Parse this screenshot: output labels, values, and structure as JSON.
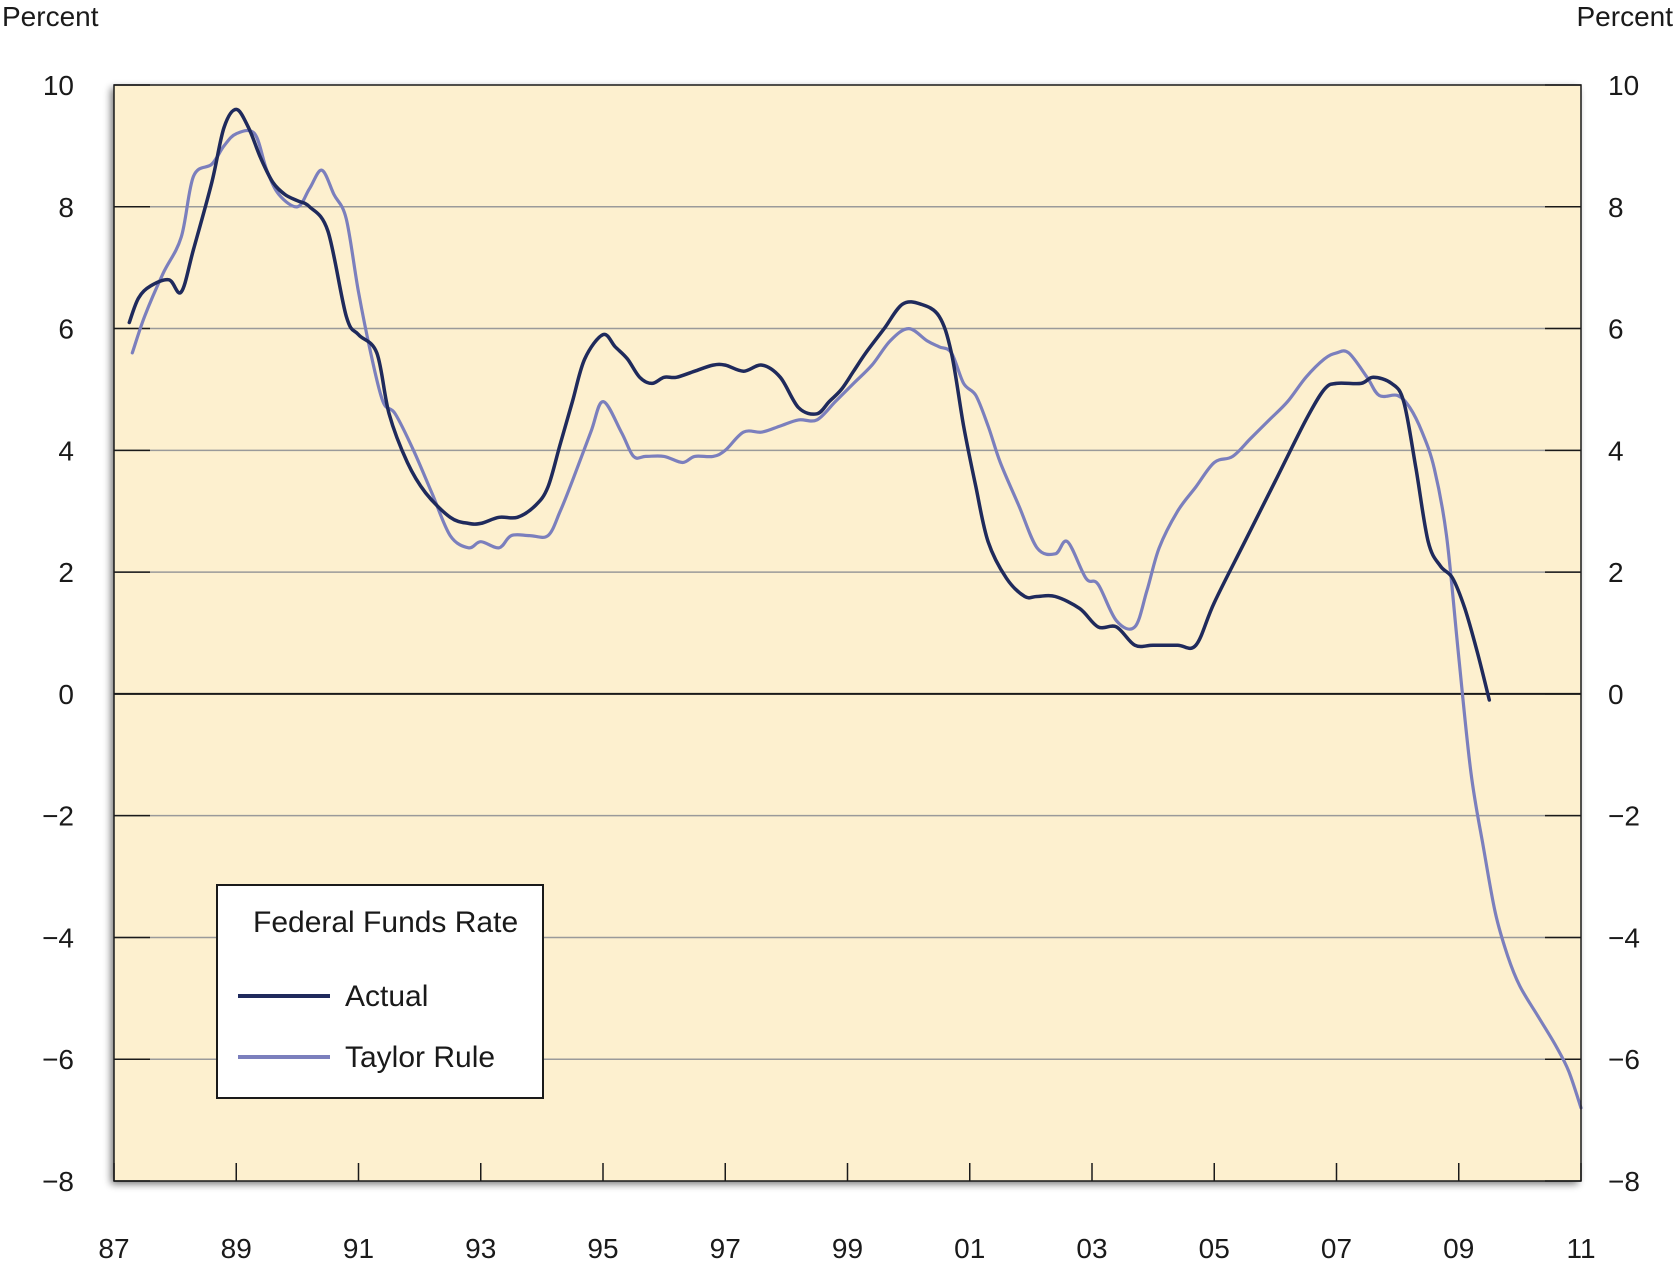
{
  "chart_data": {
    "type": "line",
    "title": "",
    "left_unit_label": "Percent",
    "right_unit_label": "Percent",
    "xlabel": "",
    "ylabel": "Percent",
    "xlim": [
      1987,
      2011
    ],
    "ylim": [
      -8,
      10
    ],
    "y_ticks": [
      10,
      8,
      6,
      4,
      2,
      0,
      -2,
      -4,
      -6,
      -8
    ],
    "y_tick_labels": [
      "10",
      "8",
      "6",
      "4",
      "2",
      "0",
      "−2",
      "−4",
      "−6",
      "−8"
    ],
    "x_ticks": [
      1987,
      1989,
      1991,
      1993,
      1995,
      1997,
      1999,
      2001,
      2003,
      2005,
      2007,
      2009,
      2011
    ],
    "x_tick_labels": [
      "87",
      "89",
      "91",
      "93",
      "95",
      "97",
      "99",
      "01",
      "03",
      "05",
      "07",
      "09",
      "11"
    ],
    "grid": true,
    "background_color": "#fdf0cf",
    "legend": {
      "title": "Federal Funds Rate",
      "placement": "bottom-left"
    },
    "series": [
      {
        "name": "Actual",
        "color": "#1f2a5c",
        "x": [
          1987.25,
          1987.4,
          1987.6,
          1987.9,
          1988.1,
          1988.3,
          1988.6,
          1988.8,
          1989.0,
          1989.2,
          1989.4,
          1989.6,
          1989.8,
          1990.0,
          1990.2,
          1990.5,
          1990.8,
          1991.0,
          1991.3,
          1991.5,
          1991.8,
          1992.1,
          1992.5,
          1992.8,
          1993.0,
          1993.3,
          1993.6,
          1993.9,
          1994.1,
          1994.3,
          1994.5,
          1994.7,
          1995.0,
          1995.2,
          1995.4,
          1995.6,
          1995.8,
          1996.0,
          1996.2,
          1996.5,
          1996.8,
          1997.0,
          1997.3,
          1997.6,
          1997.9,
          1998.2,
          1998.5,
          1998.7,
          1998.9,
          1999.1,
          1999.3,
          1999.6,
          1999.9,
          2000.2,
          2000.5,
          2000.7,
          2000.9,
          2001.1,
          2001.3,
          2001.6,
          2001.9,
          2002.1,
          2002.4,
          2002.8,
          2003.1,
          2003.4,
          2003.7,
          2004.0,
          2004.4,
          2004.7,
          2005.0,
          2005.5,
          2006.0,
          2006.5,
          2006.8,
          2007.0,
          2007.4,
          2007.6,
          2007.9,
          2008.1,
          2008.3,
          2008.5,
          2008.7,
          2008.9,
          2009.1,
          2009.3,
          2009.5
        ],
        "values": [
          6.1,
          6.5,
          6.7,
          6.8,
          6.6,
          7.3,
          8.4,
          9.3,
          9.6,
          9.3,
          8.8,
          8.4,
          8.2,
          8.1,
          8.0,
          7.6,
          6.2,
          5.9,
          5.6,
          4.6,
          3.8,
          3.3,
          2.9,
          2.8,
          2.8,
          2.9,
          2.9,
          3.1,
          3.4,
          4.1,
          4.8,
          5.5,
          5.9,
          5.7,
          5.5,
          5.2,
          5.1,
          5.2,
          5.2,
          5.3,
          5.4,
          5.4,
          5.3,
          5.4,
          5.2,
          4.7,
          4.6,
          4.8,
          5.0,
          5.3,
          5.6,
          6.0,
          6.4,
          6.4,
          6.2,
          5.6,
          4.4,
          3.4,
          2.5,
          1.9,
          1.6,
          1.6,
          1.6,
          1.4,
          1.1,
          1.1,
          0.8,
          0.8,
          0.8,
          0.8,
          1.5,
          2.5,
          3.5,
          4.5,
          5.0,
          5.1,
          5.1,
          5.2,
          5.1,
          4.8,
          3.7,
          2.5,
          2.1,
          1.9,
          1.4,
          0.7,
          -0.1
        ]
      },
      {
        "name": "Taylor Rule",
        "color": "#7b7fbd",
        "x": [
          1987.3,
          1987.5,
          1987.8,
          1988.1,
          1988.3,
          1988.6,
          1988.8,
          1989.0,
          1989.3,
          1989.5,
          1989.7,
          1990.0,
          1990.2,
          1990.4,
          1990.6,
          1990.8,
          1991.0,
          1991.2,
          1991.4,
          1991.6,
          1991.9,
          1992.2,
          1992.5,
          1992.8,
          1993.0,
          1993.3,
          1993.5,
          1993.8,
          1994.1,
          1994.3,
          1994.5,
          1994.8,
          1995.0,
          1995.3,
          1995.5,
          1995.7,
          1996.0,
          1996.3,
          1996.5,
          1996.8,
          1997.0,
          1997.3,
          1997.6,
          1997.9,
          1998.2,
          1998.5,
          1998.8,
          1999.1,
          1999.4,
          1999.7,
          2000.0,
          2000.3,
          2000.5,
          2000.7,
          2000.9,
          2001.1,
          2001.3,
          2001.5,
          2001.8,
          2002.1,
          2002.4,
          2002.6,
          2002.9,
          2003.1,
          2003.4,
          2003.7,
          2003.9,
          2004.1,
          2004.4,
          2004.7,
          2005.0,
          2005.3,
          2005.6,
          2005.9,
          2006.2,
          2006.5,
          2006.8,
          2007.0,
          2007.2,
          2007.5,
          2007.7,
          2008.0,
          2008.2,
          2008.4,
          2008.6,
          2008.8,
          2009.0,
          2009.2,
          2009.4,
          2009.6,
          2009.8,
          2010.0,
          2010.3,
          2010.6,
          2010.8,
          2011.0
        ],
        "values": [
          5.6,
          6.2,
          6.9,
          7.5,
          8.5,
          8.7,
          9.0,
          9.2,
          9.2,
          8.6,
          8.2,
          8.0,
          8.3,
          8.6,
          8.2,
          7.8,
          6.6,
          5.6,
          4.8,
          4.6,
          4.0,
          3.3,
          2.6,
          2.4,
          2.5,
          2.4,
          2.6,
          2.6,
          2.6,
          3.0,
          3.5,
          4.3,
          4.8,
          4.3,
          3.9,
          3.9,
          3.9,
          3.8,
          3.9,
          3.9,
          4.0,
          4.3,
          4.3,
          4.4,
          4.5,
          4.5,
          4.8,
          5.1,
          5.4,
          5.8,
          6.0,
          5.8,
          5.7,
          5.6,
          5.1,
          4.9,
          4.4,
          3.8,
          3.1,
          2.4,
          2.3,
          2.5,
          1.9,
          1.8,
          1.2,
          1.1,
          1.7,
          2.4,
          3.0,
          3.4,
          3.8,
          3.9,
          4.2,
          4.5,
          4.8,
          5.2,
          5.5,
          5.6,
          5.6,
          5.2,
          4.9,
          4.9,
          4.7,
          4.3,
          3.7,
          2.6,
          0.6,
          -1.3,
          -2.5,
          -3.6,
          -4.3,
          -4.8,
          -5.3,
          -5.8,
          -6.2,
          -6.8
        ]
      }
    ]
  }
}
